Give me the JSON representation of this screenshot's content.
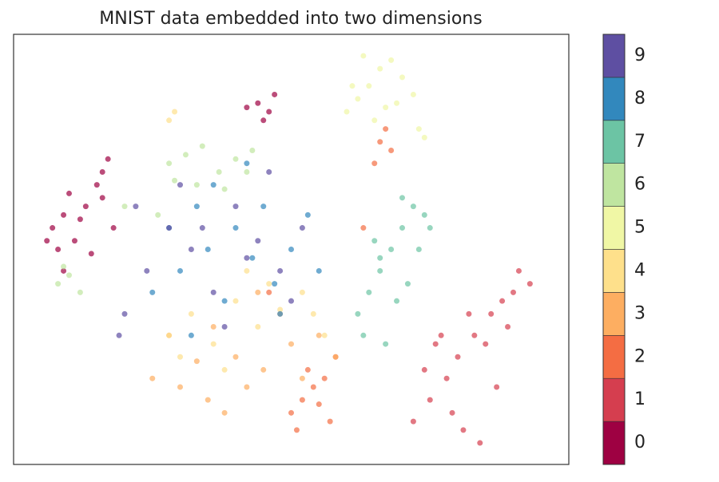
{
  "chart_data": {
    "type": "scatter",
    "title": "MNIST data embedded into two dimensions",
    "xlim": [
      0,
      100
    ],
    "ylim": [
      0,
      100
    ],
    "series": [
      {
        "name": "0",
        "color": "#9e0142",
        "x": [
          7,
          9,
          11,
          13,
          8,
          10,
          12,
          14,
          16,
          18,
          6,
          9,
          15,
          17,
          44,
          46,
          45,
          47,
          42,
          16
        ],
        "y": [
          55,
          58,
          52,
          60,
          50,
          63,
          57,
          49,
          62,
          55,
          52,
          45,
          65,
          71,
          84,
          82,
          80,
          86,
          83,
          68
        ]
      },
      {
        "name": "1",
        "color": "#d53e4f",
        "x": [
          72,
          75,
          78,
          80,
          83,
          86,
          88,
          90,
          93,
          74,
          77,
          81,
          84,
          87,
          79,
          82,
          76,
          85,
          89,
          91
        ],
        "y": [
          10,
          15,
          20,
          25,
          30,
          35,
          38,
          40,
          42,
          22,
          30,
          8,
          5,
          18,
          12,
          35,
          28,
          28,
          32,
          45
        ]
      },
      {
        "name": "2",
        "color": "#f46d43",
        "x": [
          50,
          52,
          54,
          56,
          57,
          51,
          53,
          55,
          66,
          67,
          68,
          65,
          46,
          58,
          63
        ],
        "y": [
          12,
          15,
          18,
          20,
          10,
          8,
          22,
          14,
          75,
          78,
          73,
          70,
          40,
          25,
          55
        ]
      },
      {
        "name": "3",
        "color": "#fdae61",
        "x": [
          25,
          30,
          35,
          40,
          45,
          50,
          55,
          38,
          42,
          33,
          28,
          48,
          52,
          58,
          36,
          44
        ],
        "y": [
          20,
          18,
          15,
          25,
          22,
          28,
          30,
          12,
          18,
          24,
          30,
          35,
          20,
          25,
          32,
          40
        ]
      },
      {
        "name": "4",
        "color": "#fee08b",
        "x": [
          28,
          32,
          36,
          40,
          44,
          48,
          52,
          56,
          30,
          38,
          46,
          54,
          28,
          29,
          42
        ],
        "y": [
          30,
          35,
          28,
          38,
          32,
          36,
          40,
          30,
          25,
          22,
          42,
          35,
          80,
          82,
          45
        ]
      },
      {
        "name": "5",
        "color": "#f0f7a5",
        "x": [
          60,
          62,
          64,
          66,
          68,
          70,
          72,
          61,
          65,
          69,
          73,
          74,
          63,
          67
        ],
        "y": [
          82,
          85,
          88,
          92,
          94,
          90,
          86,
          88,
          80,
          84,
          78,
          76,
          95,
          83
        ]
      },
      {
        "name": "6",
        "color": "#bfe5a0",
        "x": [
          28,
          31,
          34,
          37,
          40,
          43,
          29,
          33,
          38,
          42,
          8,
          10,
          12,
          9,
          20,
          26
        ],
        "y": [
          70,
          72,
          74,
          68,
          71,
          73,
          66,
          65,
          64,
          68,
          42,
          44,
          40,
          46,
          60,
          58
        ]
      },
      {
        "name": "7",
        "color": "#6cc4a4",
        "x": [
          62,
          64,
          66,
          68,
          70,
          72,
          74,
          65,
          69,
          73,
          63,
          67,
          71,
          75,
          70,
          66
        ],
        "y": [
          35,
          40,
          45,
          50,
          55,
          60,
          58,
          52,
          38,
          50,
          30,
          28,
          42,
          55,
          62,
          48
        ]
      },
      {
        "name": "8",
        "color": "#3288bd",
        "x": [
          25,
          30,
          35,
          40,
          45,
          50,
          55,
          28,
          33,
          38,
          43,
          48,
          53,
          36,
          42,
          47,
          32
        ],
        "y": [
          40,
          45,
          50,
          55,
          60,
          50,
          45,
          55,
          60,
          38,
          48,
          35,
          58,
          65,
          70,
          42,
          30
        ]
      },
      {
        "name": "9",
        "color": "#5e4fa2",
        "x": [
          20,
          24,
          28,
          32,
          36,
          40,
          44,
          48,
          52,
          22,
          30,
          38,
          46,
          34,
          42,
          50,
          19
        ],
        "y": [
          35,
          45,
          55,
          50,
          40,
          60,
          52,
          45,
          55,
          60,
          65,
          32,
          68,
          55,
          48,
          38,
          30
        ]
      }
    ]
  }
}
